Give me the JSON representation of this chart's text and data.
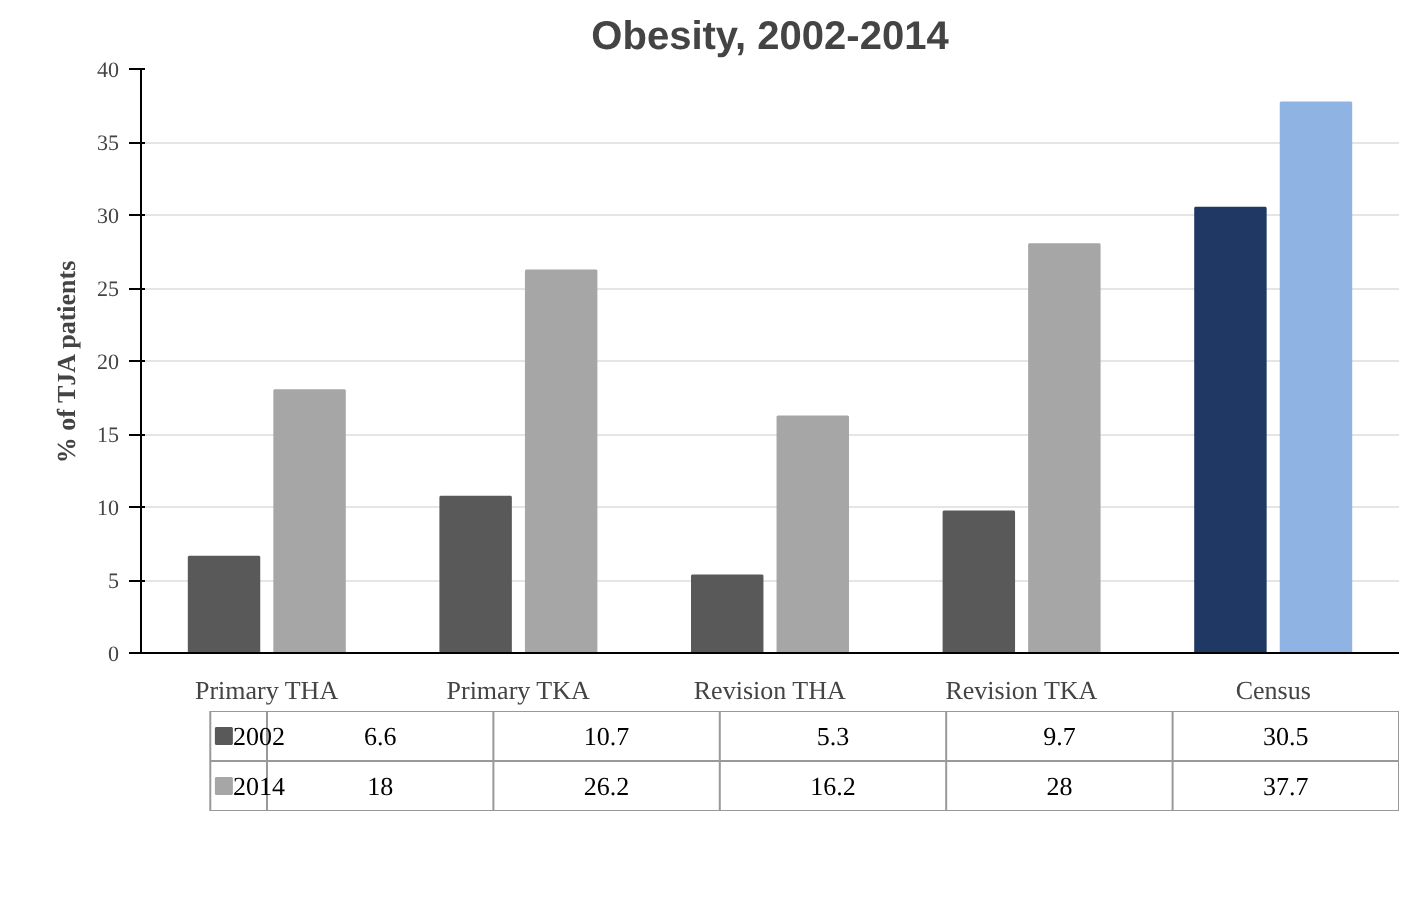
{
  "chart_data": {
    "type": "bar",
    "title": "Obesity, 2002-2014",
    "ylabel": "% of TJA patients",
    "categories": [
      "Primary THA",
      "Primary TKA",
      "Revision THA",
      "Revision TKA",
      "Census"
    ],
    "series": [
      {
        "name": "2002",
        "color": "#595959",
        "colors": [
          "#595959",
          "#595959",
          "#595959",
          "#595959",
          "#1f3864"
        ],
        "values": [
          6.6,
          10.7,
          5.3,
          9.7,
          30.5
        ]
      },
      {
        "name": "2014",
        "color": "#a6a6a6",
        "colors": [
          "#a6a6a6",
          "#a6a6a6",
          "#a6a6a6",
          "#a6a6a6",
          "#8fb4e3"
        ],
        "values": [
          18,
          26.2,
          16.2,
          28,
          37.7
        ]
      }
    ],
    "ylim": [
      0,
      40
    ],
    "yticks": [
      0,
      5,
      10,
      15,
      20,
      25,
      30,
      35,
      40
    ],
    "grid": "y",
    "data_labels": true,
    "legend": "bottom"
  }
}
